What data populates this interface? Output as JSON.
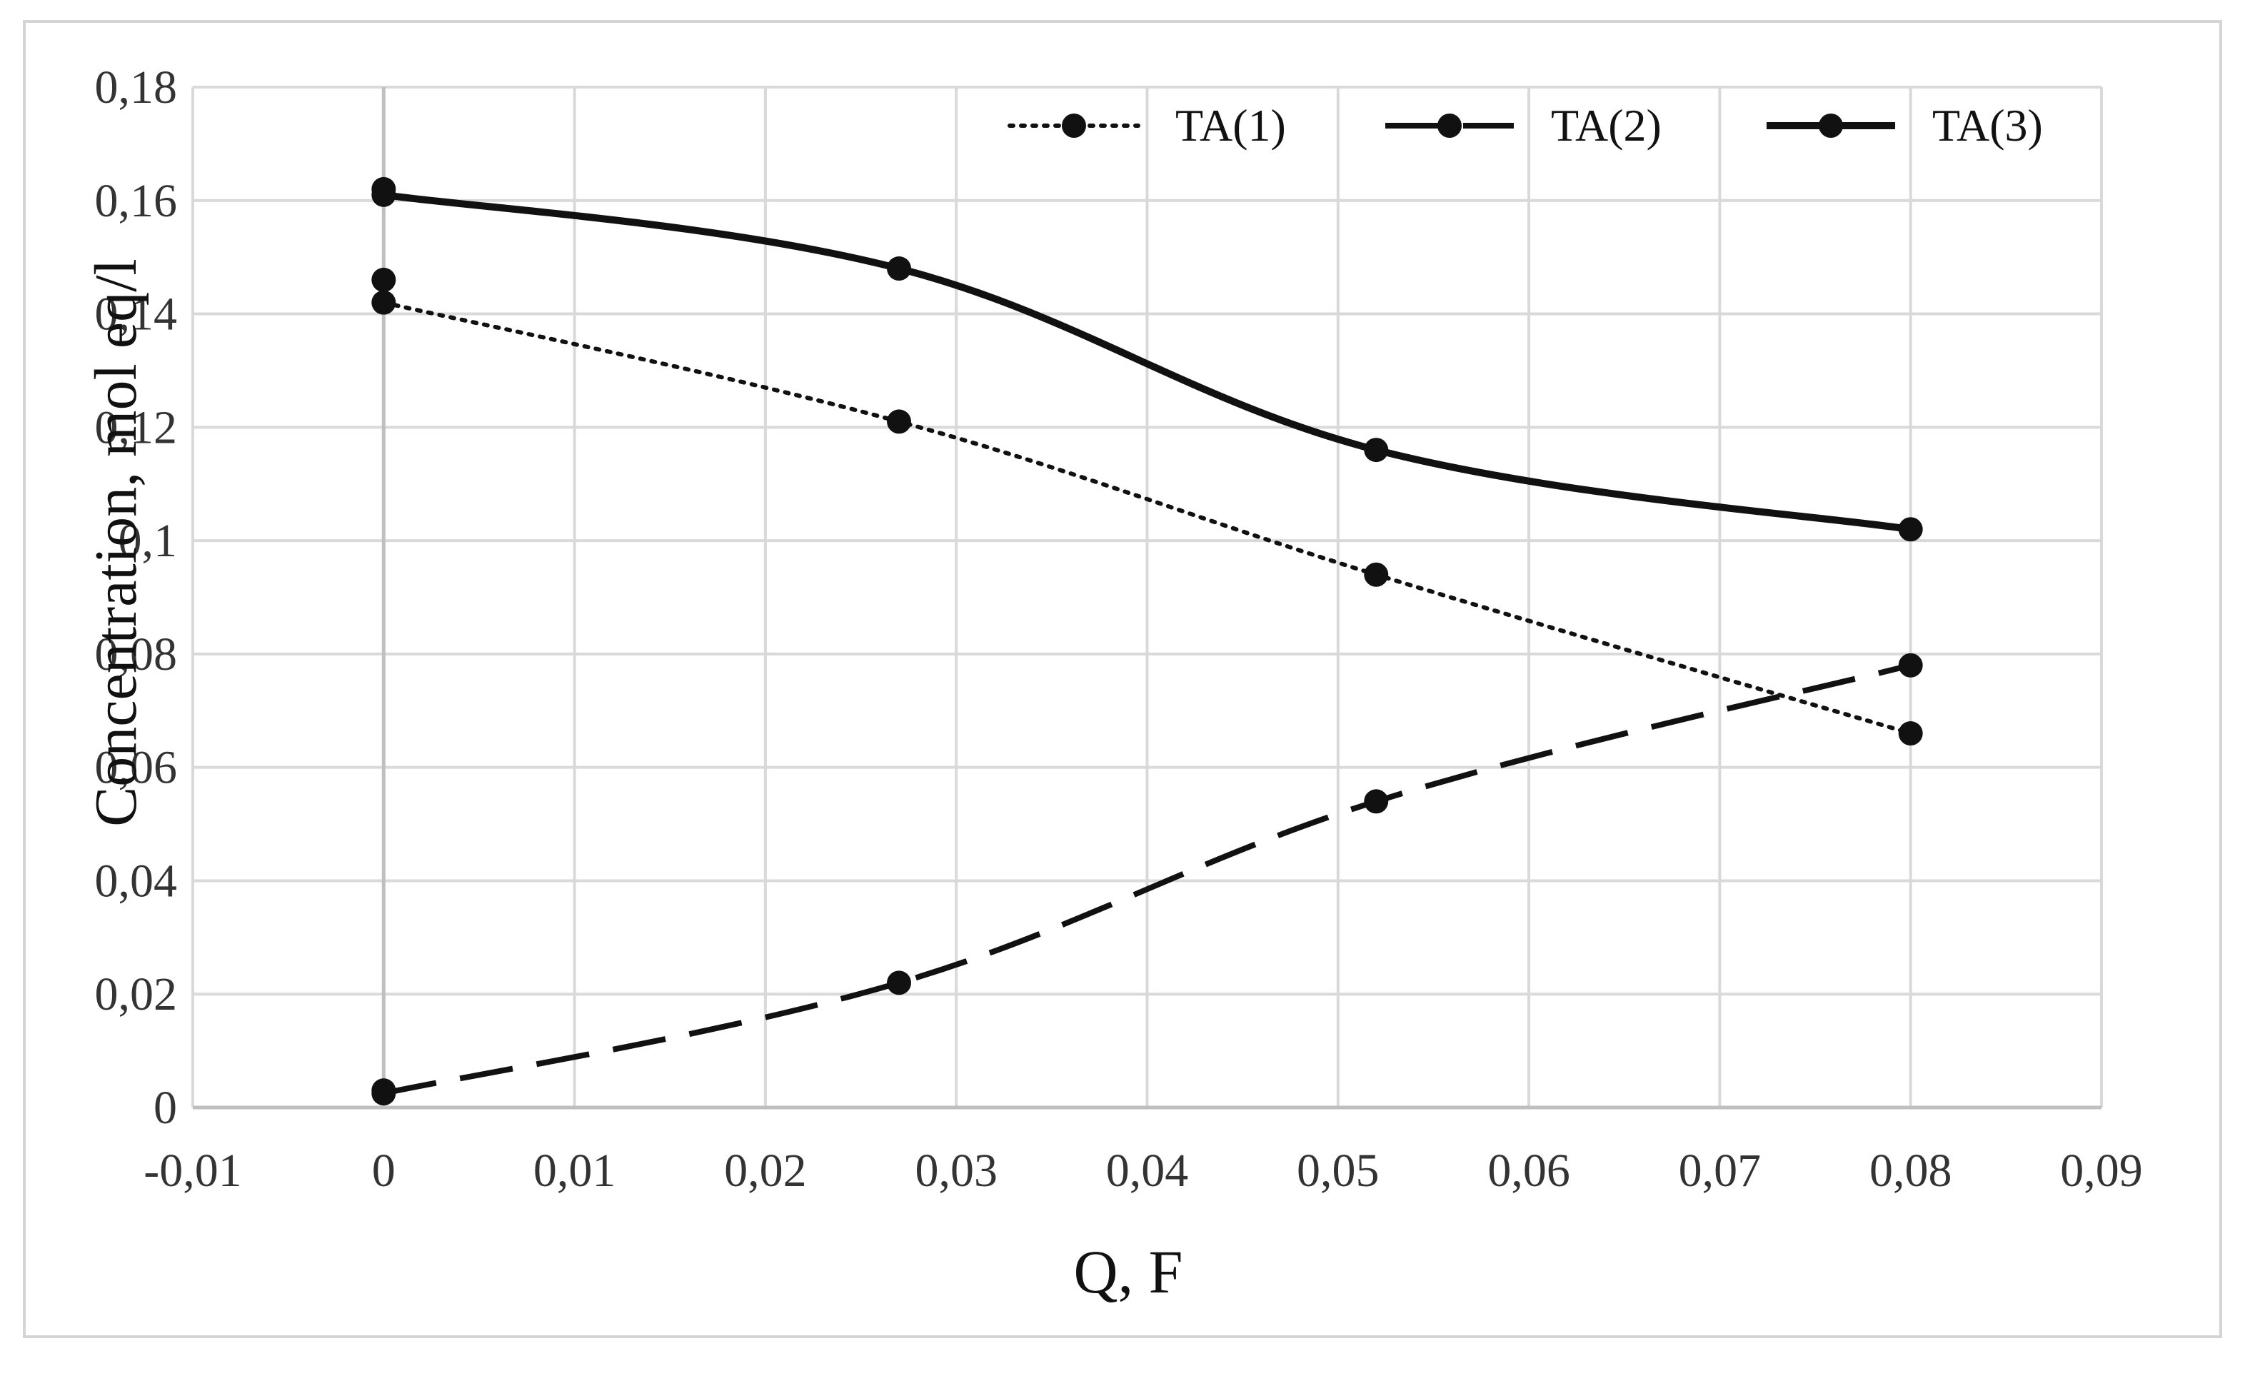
{
  "chart_data": {
    "type": "line",
    "title": "",
    "xlabel": "Q, F",
    "ylabel": "Concentration, mol eq/l",
    "xlim": [
      -0.01,
      0.09
    ],
    "ylim": [
      0,
      0.18
    ],
    "x_ticks": [
      "-0,01",
      "0",
      "0,01",
      "0,02",
      "0,03",
      "0,04",
      "0,05",
      "0,06",
      "0,07",
      "0,08",
      "0,09"
    ],
    "x_tick_values": [
      -0.01,
      0,
      0.01,
      0.02,
      0.03,
      0.04,
      0.05,
      0.06,
      0.07,
      0.08,
      0.09
    ],
    "y_ticks": [
      "0",
      "0,02",
      "0,04",
      "0,06",
      "0,08",
      "0,1",
      "0,12",
      "0,14",
      "0,16",
      "0,18"
    ],
    "y_tick_values": [
      0,
      0.02,
      0.04,
      0.06,
      0.08,
      0.1,
      0.12,
      0.14,
      0.16,
      0.18
    ],
    "grid": true,
    "legend_position": "top-right",
    "series": [
      {
        "name": "TA(1)",
        "line_style": "dotted",
        "color": "#111111",
        "x": [
          0,
          0,
          0.027,
          0.052,
          0.08
        ],
        "y": [
          0.146,
          0.142,
          0.121,
          0.094,
          0.066
        ]
      },
      {
        "name": "TA(2)",
        "line_style": "dashed",
        "color": "#111111",
        "x": [
          0,
          0,
          0.027,
          0.052,
          0.08
        ],
        "y": [
          0.003,
          0.0025,
          0.022,
          0.054,
          0.078
        ]
      },
      {
        "name": "TA(3)",
        "line_style": "solid",
        "color": "#111111",
        "x": [
          0,
          0,
          0.027,
          0.052,
          0.08
        ],
        "y": [
          0.162,
          0.161,
          0.148,
          0.116,
          0.102
        ]
      }
    ]
  }
}
